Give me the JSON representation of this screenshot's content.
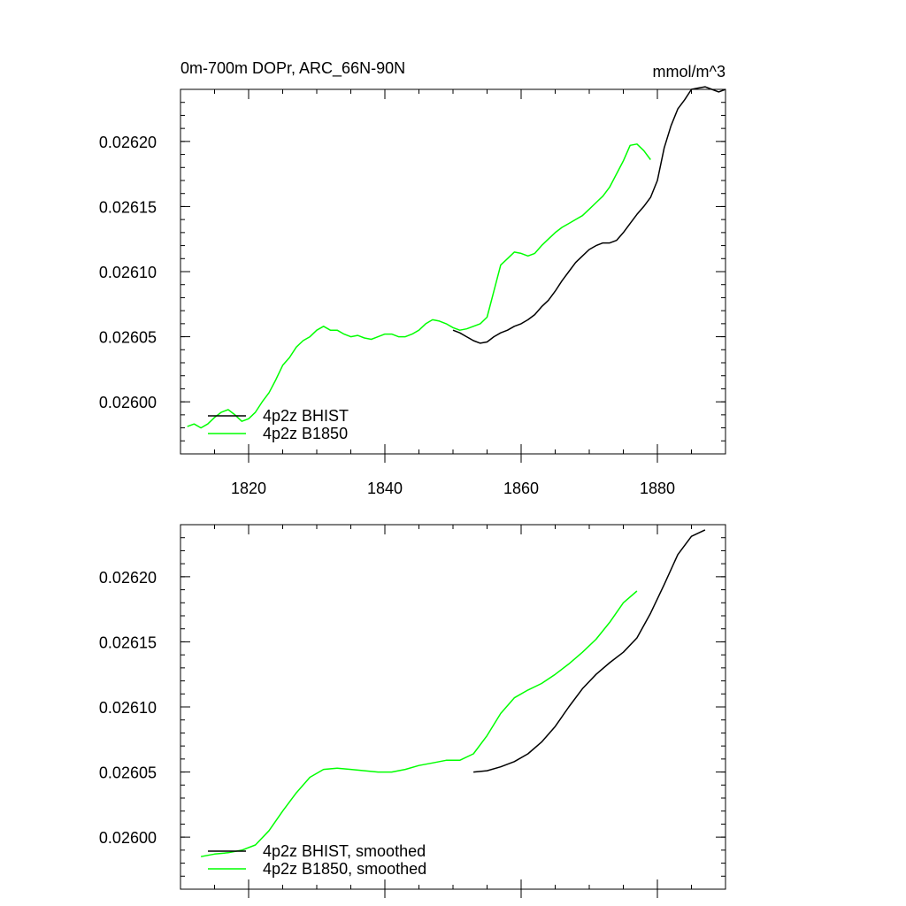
{
  "chart_data": [
    {
      "type": "line",
      "title_left": "0m-700m DOPr, ARC_66N-90N",
      "title_right": "mmol/m^3",
      "xlim": [
        1810,
        1890
      ],
      "ylim": [
        0.02596,
        0.02624
      ],
      "x_ticks": [
        {
          "value": 1820,
          "label": "1820"
        },
        {
          "value": 1840,
          "label": "1840"
        },
        {
          "value": 1860,
          "label": "1860"
        },
        {
          "value": 1880,
          "label": "1880"
        }
      ],
      "y_ticks": [
        {
          "value": 0.026,
          "label": "0.02600"
        },
        {
          "value": 0.02605,
          "label": "0.02605"
        },
        {
          "value": 0.0261,
          "label": "0.02610"
        },
        {
          "value": 0.02615,
          "label": "0.02615"
        },
        {
          "value": 0.0262,
          "label": "0.02620"
        }
      ],
      "legend_position": "bottom-left",
      "series": [
        {
          "name": "4p2z BHIST",
          "color": "#000000",
          "x": [
            1850,
            1851,
            1852,
            1853,
            1854,
            1855,
            1856,
            1857,
            1858,
            1859,
            1860,
            1861,
            1862,
            1863,
            1864,
            1865,
            1866,
            1867,
            1868,
            1869,
            1870,
            1871,
            1872,
            1873,
            1874,
            1875,
            1876,
            1877,
            1878,
            1879,
            1880,
            1881,
            1882,
            1883,
            1884,
            1885,
            1886,
            1887,
            1888,
            1889,
            1890
          ],
          "values": [
            0.026055,
            0.026053,
            0.02605,
            0.026047,
            0.026045,
            0.026046,
            0.02605,
            0.026053,
            0.026055,
            0.026058,
            0.02606,
            0.026063,
            0.026067,
            0.026073,
            0.026078,
            0.026085,
            0.026093,
            0.0261,
            0.026107,
            0.026112,
            0.026117,
            0.02612,
            0.026122,
            0.026122,
            0.026124,
            0.02613,
            0.026137,
            0.026144,
            0.02615,
            0.026157,
            0.02617,
            0.026195,
            0.026212,
            0.026225,
            0.026232,
            0.02624,
            0.026241,
            0.026242,
            0.02624,
            0.026238,
            0.02624
          ]
        },
        {
          "name": "4p2z B1850",
          "color": "#00ff00",
          "x": [
            1811,
            1812,
            1813,
            1814,
            1815,
            1816,
            1817,
            1818,
            1819,
            1820,
            1821,
            1822,
            1823,
            1824,
            1825,
            1826,
            1827,
            1828,
            1829,
            1830,
            1831,
            1832,
            1833,
            1834,
            1835,
            1836,
            1837,
            1838,
            1839,
            1840,
            1841,
            1842,
            1843,
            1844,
            1845,
            1846,
            1847,
            1848,
            1849,
            1850,
            1851,
            1852,
            1853,
            1854,
            1855,
            1856,
            1857,
            1858,
            1859,
            1860,
            1861,
            1862,
            1863,
            1864,
            1865,
            1866,
            1867,
            1868,
            1869,
            1870,
            1871,
            1872,
            1873,
            1874,
            1875,
            1876,
            1877,
            1878,
            1879
          ],
          "values": [
            0.025981,
            0.025983,
            0.02598,
            0.025983,
            0.025988,
            0.025992,
            0.025994,
            0.02599,
            0.025985,
            0.025987,
            0.025992,
            0.026,
            0.026007,
            0.026017,
            0.026028,
            0.026034,
            0.026042,
            0.026047,
            0.02605,
            0.026055,
            0.026058,
            0.026055,
            0.026055,
            0.026052,
            0.02605,
            0.026051,
            0.026049,
            0.026048,
            0.02605,
            0.026052,
            0.026052,
            0.02605,
            0.02605,
            0.026052,
            0.026055,
            0.02606,
            0.026063,
            0.026062,
            0.02606,
            0.026057,
            0.026055,
            0.026056,
            0.026058,
            0.02606,
            0.026065,
            0.026085,
            0.026105,
            0.02611,
            0.026115,
            0.026114,
            0.026112,
            0.026114,
            0.02612,
            0.026125,
            0.02613,
            0.026134,
            0.026137,
            0.02614,
            0.026143,
            0.026148,
            0.026153,
            0.026158,
            0.026165,
            0.026175,
            0.026185,
            0.026197,
            0.026198,
            0.026193,
            0.026186
          ]
        }
      ]
    },
    {
      "type": "line",
      "xlim": [
        1810,
        1890
      ],
      "ylim": [
        0.02596,
        0.02624
      ],
      "x_ticks": [
        {
          "value": 1820,
          "label": ""
        },
        {
          "value": 1840,
          "label": ""
        },
        {
          "value": 1860,
          "label": ""
        },
        {
          "value": 1880,
          "label": ""
        }
      ],
      "y_ticks": [
        {
          "value": 0.026,
          "label": "0.02600"
        },
        {
          "value": 0.02605,
          "label": "0.02605"
        },
        {
          "value": 0.0261,
          "label": "0.02610"
        },
        {
          "value": 0.02615,
          "label": "0.02615"
        },
        {
          "value": 0.0262,
          "label": "0.02620"
        }
      ],
      "legend_position": "bottom-left",
      "series": [
        {
          "name": "4p2z BHIST, smoothed",
          "color": "#000000",
          "x": [
            1853,
            1855,
            1857,
            1859,
            1861,
            1863,
            1865,
            1867,
            1869,
            1871,
            1873,
            1875,
            1877,
            1879,
            1881,
            1883,
            1885,
            1887
          ],
          "values": [
            0.02605,
            0.026051,
            0.026054,
            0.026058,
            0.026064,
            0.026073,
            0.026085,
            0.0261,
            0.026114,
            0.026125,
            0.026134,
            0.026142,
            0.026153,
            0.026172,
            0.026194,
            0.026217,
            0.026231,
            0.026236
          ]
        },
        {
          "name": "4p2z B1850, smoothed",
          "color": "#00ff00",
          "x": [
            1813,
            1815,
            1817,
            1819,
            1821,
            1823,
            1825,
            1827,
            1829,
            1831,
            1833,
            1835,
            1837,
            1839,
            1841,
            1843,
            1845,
            1847,
            1849,
            1851,
            1853,
            1855,
            1857,
            1859,
            1861,
            1863,
            1865,
            1867,
            1869,
            1871,
            1873,
            1875,
            1877
          ],
          "values": [
            0.025985,
            0.025987,
            0.025988,
            0.02599,
            0.025994,
            0.026005,
            0.02602,
            0.026034,
            0.026046,
            0.026052,
            0.026053,
            0.026052,
            0.026051,
            0.02605,
            0.02605,
            0.026052,
            0.026055,
            0.026057,
            0.026059,
            0.026059,
            0.026064,
            0.026078,
            0.026095,
            0.026107,
            0.026113,
            0.026118,
            0.026125,
            0.026133,
            0.026142,
            0.026152,
            0.026165,
            0.02618,
            0.026189
          ]
        }
      ]
    }
  ]
}
